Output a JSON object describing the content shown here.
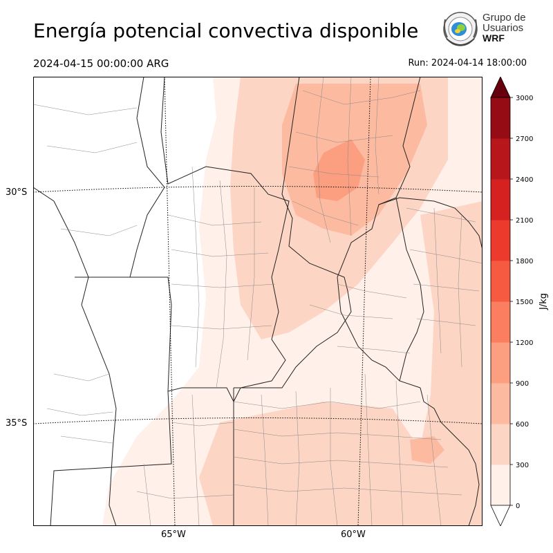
{
  "header": {
    "title": "Energía potencial convectiva disponible",
    "valid_time": "2024-04-15 00:00:00 ARG",
    "run": "Run: 2024-04-14 18:00:00"
  },
  "logo": {
    "line1": "Grupo de",
    "line2": "Usuarios",
    "line3": "WRF",
    "icon": "wrf-users-group-seal"
  },
  "map": {
    "lat_labels": [
      "30°S",
      "35°S"
    ],
    "lon_labels": [
      "65°W",
      "60°W"
    ],
    "fill_colors": [
      "#fff5f0",
      "#fee0d2",
      "#fcbba1",
      "#fc9272"
    ]
  },
  "colorbar": {
    "unit": "J/kg",
    "levels": [
      "0",
      "300",
      "600",
      "900",
      "1200",
      "1500",
      "1800",
      "2100",
      "2400",
      "2700",
      "3000"
    ],
    "colors": [
      "#fff0e9",
      "#fdd5c4",
      "#fcbba1",
      "#fc9e80",
      "#fb7e61",
      "#f65a41",
      "#ec3a2c",
      "#d52120",
      "#b7161b",
      "#960c14"
    ],
    "over_color": "#67000d"
  }
}
